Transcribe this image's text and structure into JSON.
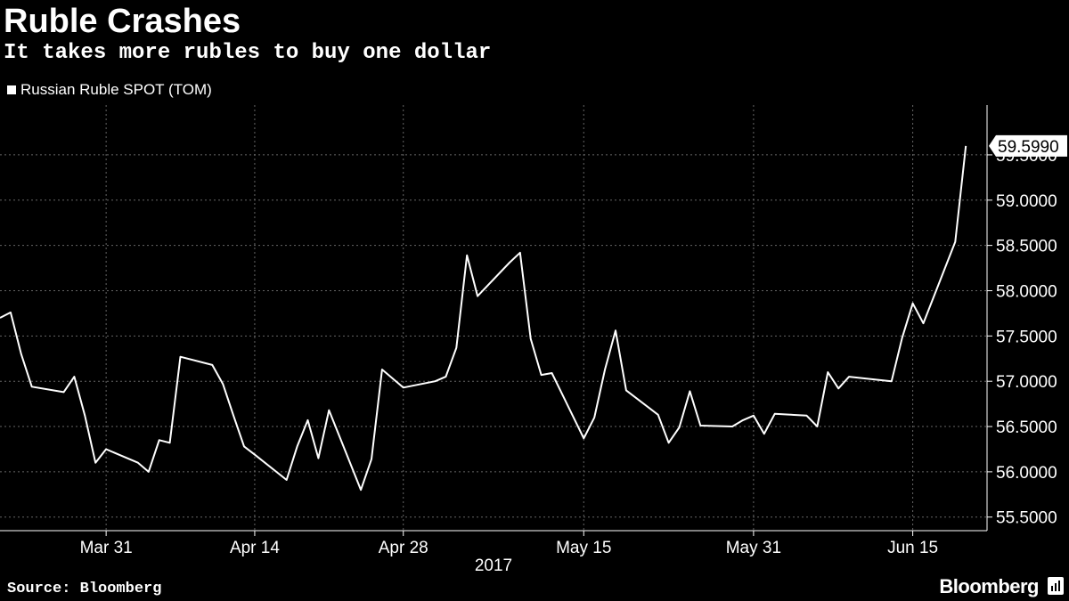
{
  "title": "Ruble Crashes",
  "subtitle": "It takes more rubles to buy one dollar",
  "legend": {
    "label": "Russian Ruble SPOT (TOM)"
  },
  "source": "Source: Bloomberg",
  "brand": "Bloomberg",
  "colors": {
    "background": "#000000",
    "line": "#ffffff",
    "grid": "#666666"
  },
  "chart_data": {
    "type": "line",
    "title": "Ruble Crashes",
    "subtitle": "It takes more rubles to buy one dollar",
    "series": [
      {
        "name": "Russian Ruble SPOT (TOM)",
        "x": [
          "2017-03-21",
          "2017-03-22",
          "2017-03-23",
          "2017-03-24",
          "2017-03-27",
          "2017-03-28",
          "2017-03-29",
          "2017-03-30",
          "2017-03-31",
          "2017-04-03",
          "2017-04-04",
          "2017-04-05",
          "2017-04-06",
          "2017-04-07",
          "2017-04-10",
          "2017-04-11",
          "2017-04-12",
          "2017-04-13",
          "2017-04-14",
          "2017-04-17",
          "2017-04-18",
          "2017-04-19",
          "2017-04-20",
          "2017-04-21",
          "2017-04-24",
          "2017-04-25",
          "2017-04-26",
          "2017-04-27",
          "2017-04-28",
          "2017-05-01",
          "2017-05-02",
          "2017-05-03",
          "2017-05-04",
          "2017-05-05",
          "2017-05-08",
          "2017-05-09",
          "2017-05-10",
          "2017-05-11",
          "2017-05-12",
          "2017-05-15",
          "2017-05-16",
          "2017-05-17",
          "2017-05-18",
          "2017-05-19",
          "2017-05-22",
          "2017-05-23",
          "2017-05-24",
          "2017-05-25",
          "2017-05-26",
          "2017-05-29",
          "2017-05-30",
          "2017-05-31",
          "2017-06-01",
          "2017-06-02",
          "2017-06-05",
          "2017-06-06",
          "2017-06-07",
          "2017-06-08",
          "2017-06-09",
          "2017-06-13",
          "2017-06-14",
          "2017-06-15",
          "2017-06-16",
          "2017-06-19",
          "2017-06-20"
        ],
        "values": [
          57.7,
          57.76,
          57.3,
          56.94,
          56.88,
          57.05,
          56.62,
          56.1,
          56.25,
          56.1,
          56.0,
          56.35,
          56.32,
          57.27,
          57.18,
          56.97,
          56.62,
          56.28,
          56.19,
          55.91,
          56.28,
          56.57,
          56.15,
          56.68,
          55.8,
          56.14,
          57.13,
          57.03,
          56.93,
          57.0,
          57.05,
          57.37,
          58.39,
          57.94,
          58.31,
          58.42,
          57.47,
          57.07,
          57.09,
          56.37,
          56.6,
          57.13,
          57.56,
          56.9,
          56.63,
          56.32,
          56.49,
          56.89,
          56.51,
          56.5,
          56.57,
          56.62,
          56.42,
          56.64,
          56.62,
          56.5,
          57.1,
          56.92,
          57.05,
          57.0,
          57.48,
          57.86,
          57.64,
          58.54,
          59.599
        ]
      }
    ],
    "last_value_label": "59.5990",
    "xlabel": "2017",
    "ylabel": "",
    "x_ticks": [
      {
        "date": "2017-03-31",
        "label": "Mar 31"
      },
      {
        "date": "2017-04-14",
        "label": "Apr 14"
      },
      {
        "date": "2017-04-28",
        "label": "Apr 28"
      },
      {
        "date": "2017-05-15",
        "label": "May 15"
      },
      {
        "date": "2017-05-31",
        "label": "May 31"
      },
      {
        "date": "2017-06-15",
        "label": "Jun 15"
      }
    ],
    "y_ticks": [
      {
        "value": 55.5,
        "label": "55.5000"
      },
      {
        "value": 56.0,
        "label": "56.0000"
      },
      {
        "value": 56.5,
        "label": "56.5000"
      },
      {
        "value": 57.0,
        "label": "57.0000"
      },
      {
        "value": 57.5,
        "label": "57.5000"
      },
      {
        "value": 58.0,
        "label": "58.0000"
      },
      {
        "value": 58.5,
        "label": "58.5000"
      },
      {
        "value": 59.0,
        "label": "59.0000"
      },
      {
        "value": 59.5,
        "label": "59.5000"
      }
    ],
    "xlim": [
      "2017-03-21",
      "2017-06-22"
    ],
    "ylim": [
      55.35,
      60.05
    ],
    "grid": true,
    "y_axis_position": "right",
    "legend_position": "top-left"
  }
}
